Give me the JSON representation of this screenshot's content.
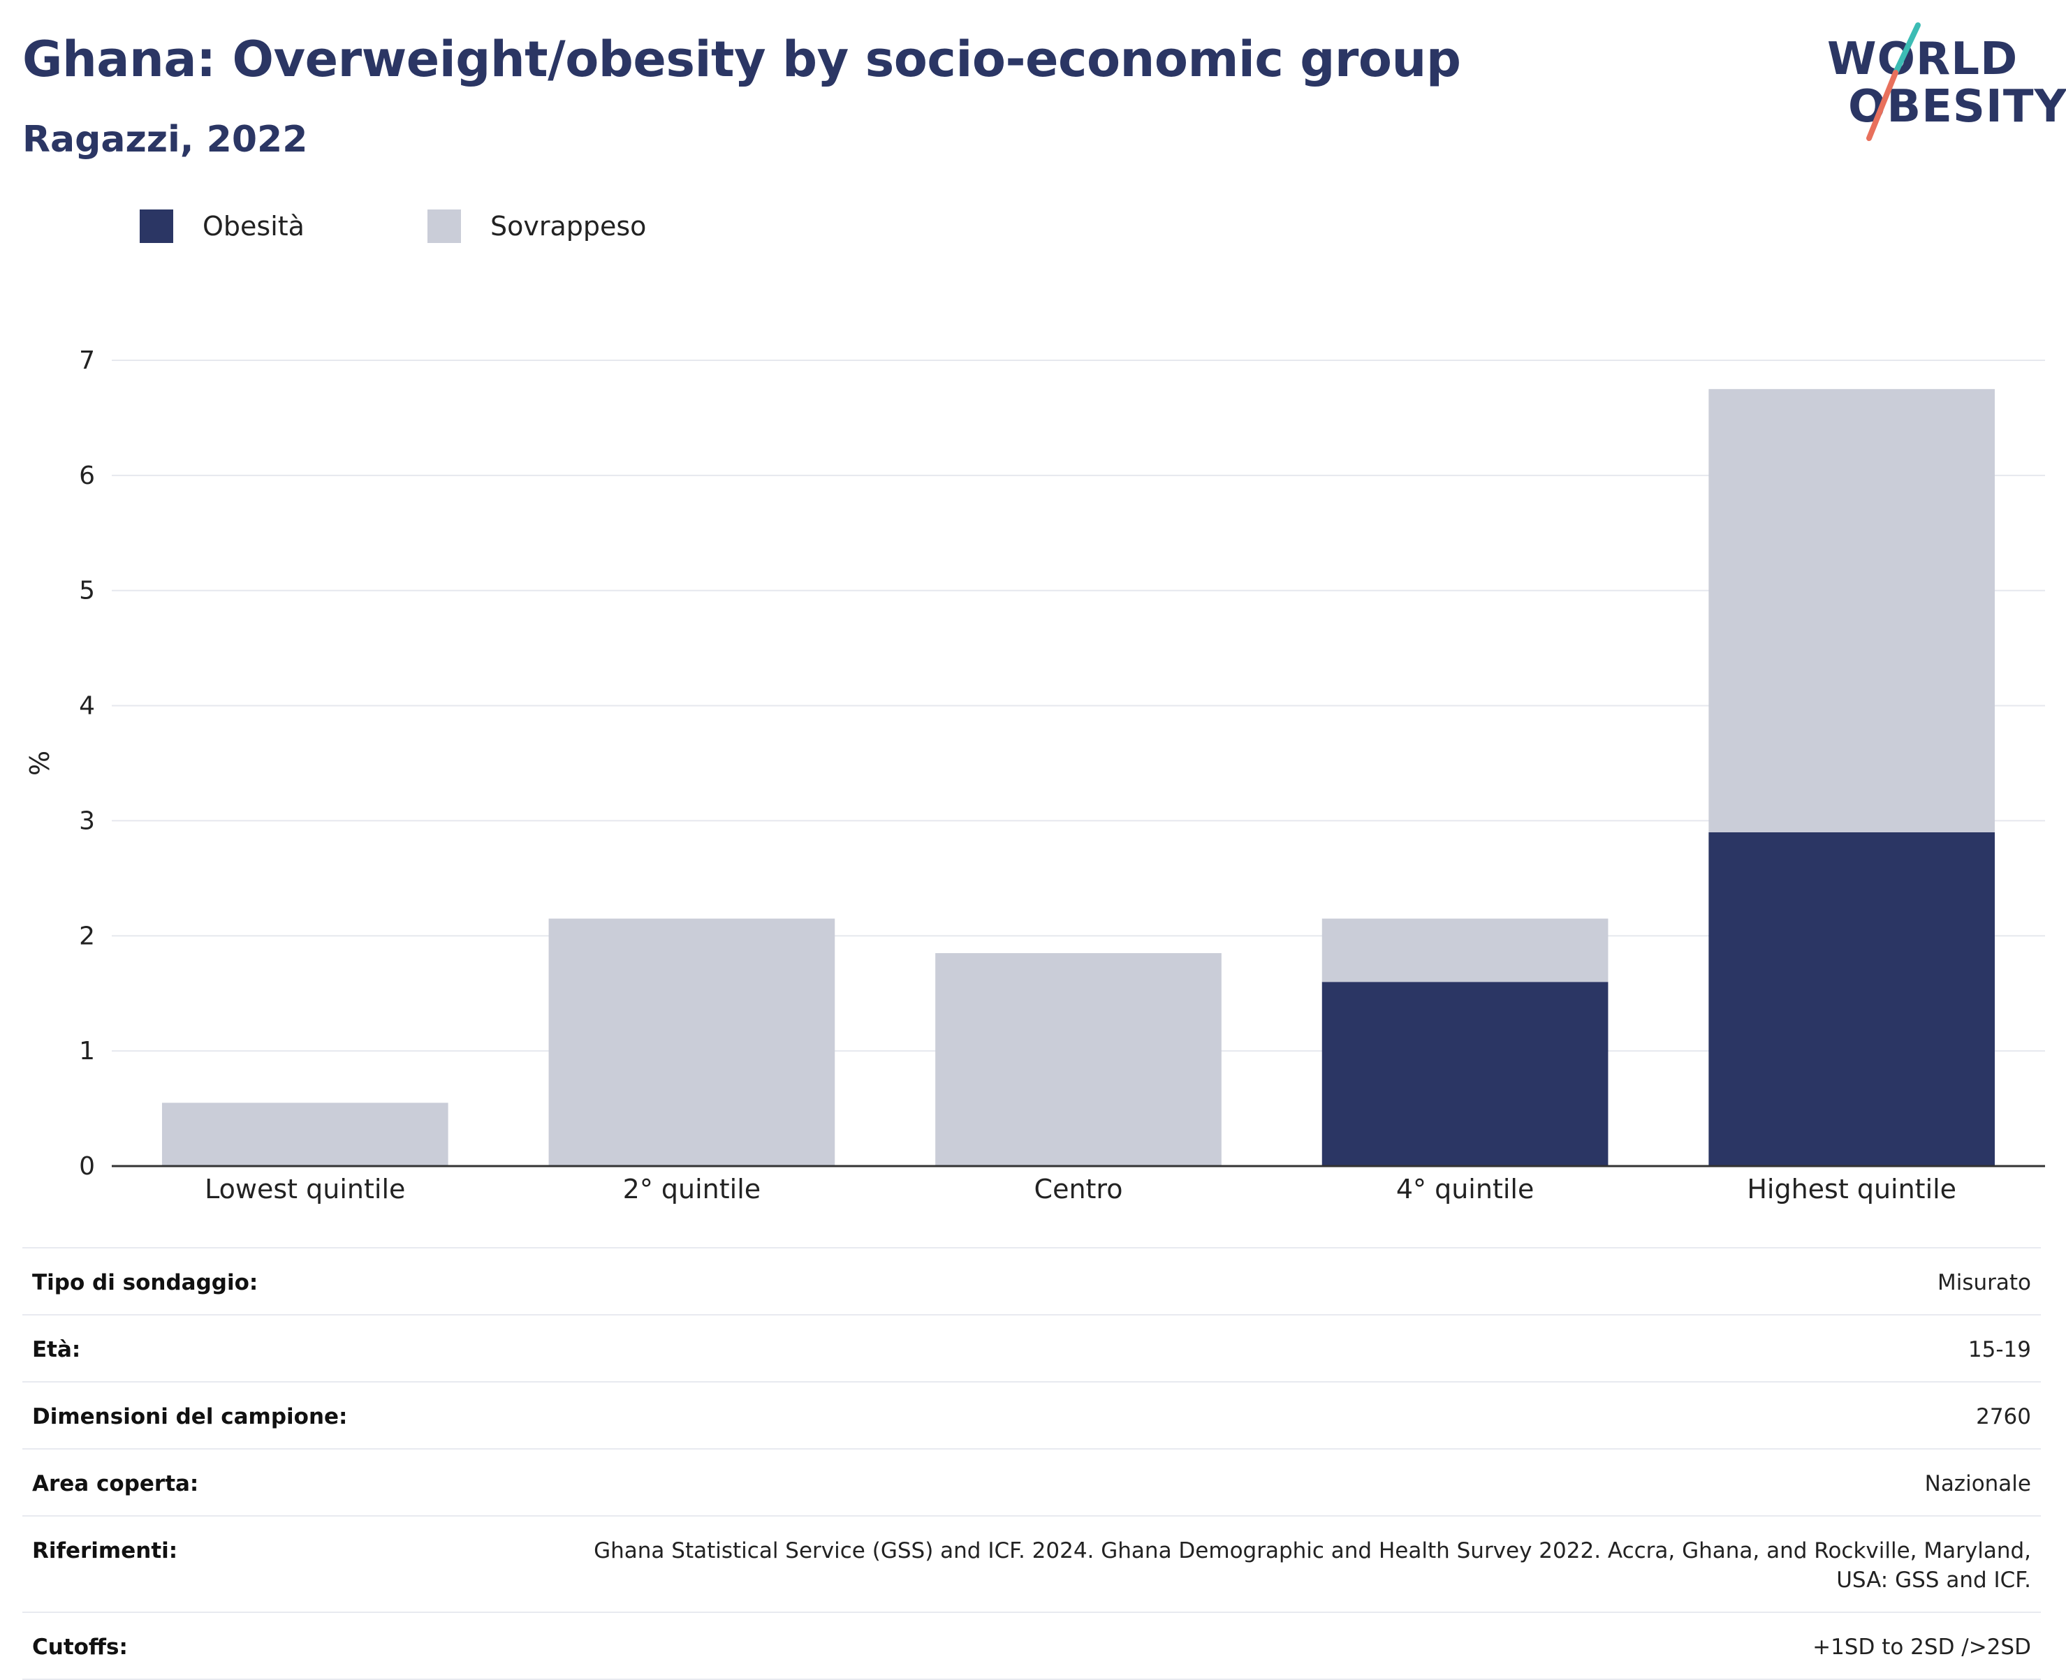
{
  "header": {
    "title": "Ghana: Overweight/obesity by socio-economic group",
    "subtitle": "Ragazzi, 2022"
  },
  "logo": {
    "line1": "WORLD",
    "line2": "OBESITY",
    "accent_teal": "#3cbcb4",
    "accent_coral": "#e8705c"
  },
  "legend": [
    {
      "label": "Obesità",
      "color": "#2b3664"
    },
    {
      "label": "Sovrappeso",
      "color": "#cacdd8"
    }
  ],
  "chart_data": {
    "type": "bar",
    "stacked": true,
    "categories": [
      "Lowest quintile",
      "2° quintile",
      "Centro",
      "4° quintile",
      "Highest quintile"
    ],
    "series": [
      {
        "name": "Obesità",
        "color": "#2b3664",
        "values": [
          0,
          0,
          0,
          1.6,
          2.9
        ]
      },
      {
        "name": "Sovrappeso",
        "color": "#cacdd8",
        "values": [
          0.55,
          2.15,
          1.85,
          0.55,
          3.85
        ]
      }
    ],
    "ylabel": "%",
    "ylim": [
      0,
      7
    ],
    "yticks": [
      0,
      1,
      2,
      3,
      4,
      5,
      6,
      7
    ],
    "grid": true,
    "legend_position": "top-left"
  },
  "info": [
    {
      "label": "Tipo di sondaggio:",
      "value": "Misurato"
    },
    {
      "label": "Età:",
      "value": "15-19"
    },
    {
      "label": "Dimensioni del campione:",
      "value": "2760"
    },
    {
      "label": "Area coperta:",
      "value": "Nazionale"
    },
    {
      "label": "Riferimenti:",
      "value": "Ghana Statistical Service (GSS) and ICF. 2024. Ghana Demographic and Health Survey 2022. Accra, Ghana, and Rockville, Maryland, USA: GSS and ICF."
    },
    {
      "label": "Cutoffs:",
      "value": "+1SD to 2SD />2SD"
    }
  ]
}
